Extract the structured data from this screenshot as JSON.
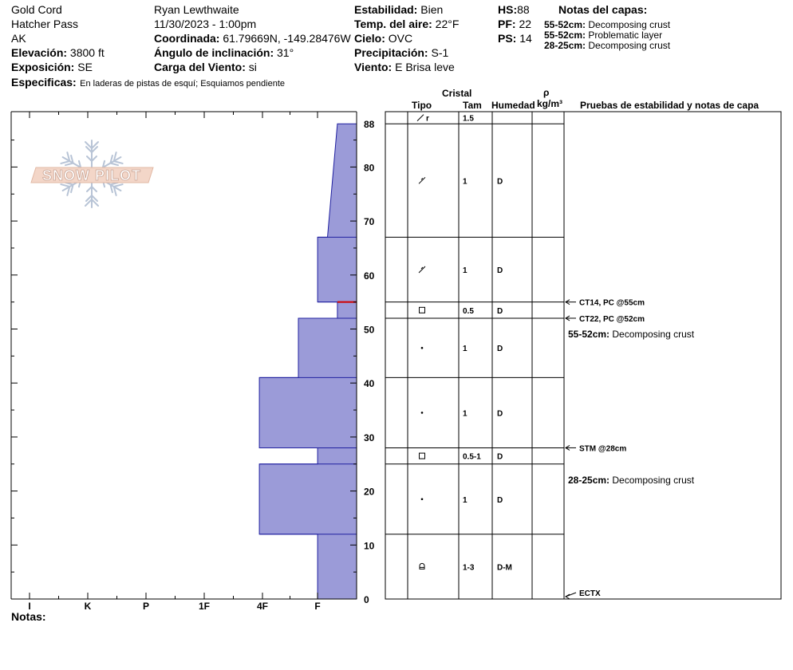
{
  "header": {
    "col1": [
      "Gold Cord",
      "Hatcher Pass",
      "AK"
    ],
    "elev_label": "Elevación:",
    "elev_value": "3800 ft",
    "aspect_label": "Exposición:",
    "aspect_value": "SE",
    "observer": "Ryan Lewthwaite",
    "datetime": "11/30/2023 - 1:00pm",
    "coord_label": "Coordinada:",
    "coord_value": "61.79669N, -149.28476W",
    "slope_label": "Ángulo de inclinación:",
    "slope_value": "31°",
    "wind_load_label": "Carga del Viento:",
    "wind_load_value": "si",
    "stability_label": "Estabilidad:",
    "stability_value": "Bien",
    "air_temp_label": "Temp. del aire:",
    "air_temp_value": "22°F",
    "sky_label": "Cielo:",
    "sky_value": "OVC",
    "precip_label": "Precipitación:",
    "precip_value": "S-1",
    "wind_label": "Viento:",
    "wind_value": "E Brisa leve",
    "hs_label": "HS:",
    "hs_value": "88",
    "pf_label": "PF:",
    "pf_value": "22",
    "ps_label": "PS:",
    "ps_value": "14",
    "layer_notes_title": "Notas del capas:",
    "layer_notes": [
      {
        "range": "55-52cm:",
        "text": "Decomposing crust"
      },
      {
        "range": "55-52cm:",
        "text": "Problematic layer"
      },
      {
        "range": "28-25cm:",
        "text": "Decomposing crust"
      }
    ],
    "specifics_label": "Especificas:",
    "specifics_value": "En laderas de pistas de esquí; Esquiamos pendiente"
  },
  "logo_text": "SNOW PILOT",
  "notes_label": "Notas:",
  "columns": {
    "crystal": "Cristal",
    "type": "Tipo",
    "size": "Tam",
    "moisture": "Humedad",
    "rho": "ρ",
    "density_unit": "kg/m³",
    "tests": "Pruebas de estabilidad y notas de capa"
  },
  "chart_data": {
    "type": "bar",
    "orientation": "horizontal",
    "hardness_categories": [
      "I",
      "K",
      "P",
      "1F",
      "4F",
      "F"
    ],
    "y_range_cm": [
      0,
      88
    ],
    "y_ticks_labeled": [
      0,
      10,
      20,
      30,
      40,
      50,
      60,
      70,
      80,
      88
    ],
    "bar_color": "#9b9bd8",
    "bar_outline": "#2020a0",
    "hardness_profile": [
      {
        "depth_cm": 88,
        "hardness": 0.33
      },
      {
        "depth_cm": 67,
        "hardness": 0.5
      },
      {
        "depth_cm": 67,
        "hardness": 0.67
      },
      {
        "depth_cm": 55,
        "hardness": 0.67
      },
      {
        "depth_cm": 55,
        "hardness": 0.33
      },
      {
        "depth_cm": 52,
        "hardness": 0.33
      },
      {
        "depth_cm": 52,
        "hardness": 1.0
      },
      {
        "depth_cm": 41,
        "hardness": 1.0
      },
      {
        "depth_cm": 41,
        "hardness": 1.67
      },
      {
        "depth_cm": 28,
        "hardness": 1.67
      },
      {
        "depth_cm": 28,
        "hardness": 0.67
      },
      {
        "depth_cm": 25,
        "hardness": 0.67
      },
      {
        "depth_cm": 25,
        "hardness": 1.67
      },
      {
        "depth_cm": 12,
        "hardness": 1.67
      },
      {
        "depth_cm": 12,
        "hardness": 0.67
      },
      {
        "depth_cm": 0,
        "hardness": 0.67
      }
    ],
    "problem_layer_cm": 55,
    "problem_layer_color": "#d00000",
    "layers": [
      {
        "top": 90.5,
        "bottom": 88,
        "type": "rounding-faceted",
        "size": "1.5",
        "moist": ""
      },
      {
        "top": 88,
        "bottom": 67,
        "type": "decomposing",
        "size": "1",
        "moist": "D"
      },
      {
        "top": 67,
        "bottom": 55,
        "type": "decomposing",
        "size": "1",
        "moist": "D"
      },
      {
        "top": 55,
        "bottom": 52,
        "type": "faceted",
        "size": "0.5",
        "moist": "D"
      },
      {
        "top": 52,
        "bottom": 41,
        "type": "rounded",
        "size": "1",
        "moist": "D"
      },
      {
        "top": 41,
        "bottom": 28,
        "type": "rounded",
        "size": "1",
        "moist": "D"
      },
      {
        "top": 28,
        "bottom": 25,
        "type": "faceted",
        "size": "0.5-1",
        "moist": "D"
      },
      {
        "top": 25,
        "bottom": 12,
        "type": "rounded",
        "size": "1",
        "moist": "D"
      },
      {
        "top": 12,
        "bottom": 0,
        "type": "melt-freeze",
        "size": "1-3",
        "moist": "D-M"
      }
    ],
    "tests": [
      {
        "depth_cm": 55,
        "label": "CT14, PC @55cm"
      },
      {
        "depth_cm": 52,
        "label": "CT22, PC @52cm"
      },
      {
        "depth_cm": 28,
        "label": "STM @28cm"
      },
      {
        "depth_cm": 0,
        "label": "ECTX"
      }
    ],
    "test_notes": [
      {
        "depth_cm": 52,
        "range": "55-52cm:",
        "text": "Decomposing crust"
      },
      {
        "depth_cm": 25,
        "range": "28-25cm:",
        "text": "Decomposing crust"
      }
    ]
  }
}
